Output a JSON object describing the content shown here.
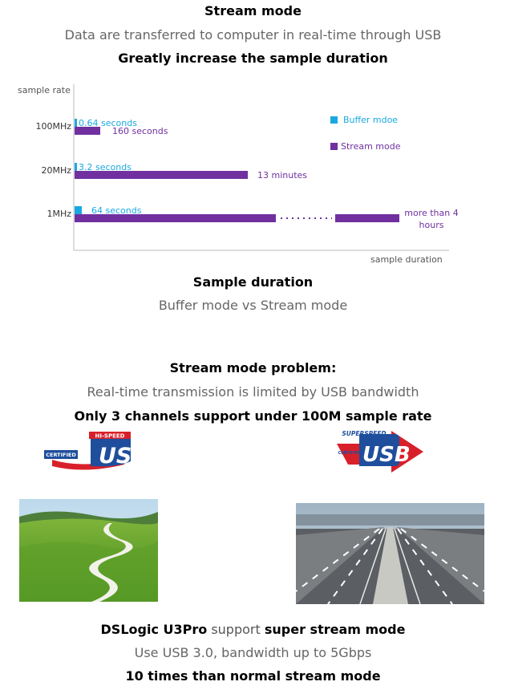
{
  "header": {
    "title": "Stream mode",
    "subtitle": "Data are transferred to computer in real-time through USB",
    "headline": "Greatly increase the sample duration"
  },
  "chart_data": {
    "type": "bar",
    "orientation": "horizontal",
    "ylabel": "sample rate",
    "xlabel": "sample duration",
    "categories": [
      "100MHz",
      "20MHz",
      "1MHz"
    ],
    "series": [
      {
        "name": "Buffer mdoe",
        "color": "#1aa8e0",
        "values_seconds": [
          0.64,
          3.2,
          64
        ]
      },
      {
        "name": "Stream mode",
        "color": "#7030a0",
        "values_seconds": [
          160,
          780,
          14400
        ]
      }
    ],
    "bar_labels": {
      "buffer": [
        "0.64 seconds",
        "3.2 seconds",
        "64 seconds"
      ],
      "stream": [
        "160 seconds",
        "13 minutes",
        "more than 4 hours"
      ]
    },
    "legend_position": "top-right",
    "grid": false,
    "caption_title": "Sample duration",
    "caption_sub": "Buffer mode vs Stream mode"
  },
  "problem": {
    "title": "Stream mode problem:",
    "text": "Real-time transmission is limited by USB bandwidth",
    "headline": "Only 3 channels support under 100M sample rate"
  },
  "logos": {
    "hispeed_top": "HI-SPEED",
    "hispeed_certified": "CERTIFIED",
    "hispeed_usb": "USB",
    "superspeed_top": "SUPERSPEED",
    "superspeed_certified": "CERTIFIED",
    "superspeed_usb": "USB"
  },
  "footer": {
    "product": "DSLogic U3Pro",
    "support": "support",
    "feature": "super stream mode",
    "detail": "Use USB 3.0, bandwidth up to 5Gbps",
    "headline": "10 times than normal stream mode"
  },
  "colors": {
    "buffer": "#1aa8e0",
    "stream": "#7030a0",
    "usb_blue": "#1f4e9c",
    "usb_red": "#d8202a"
  }
}
